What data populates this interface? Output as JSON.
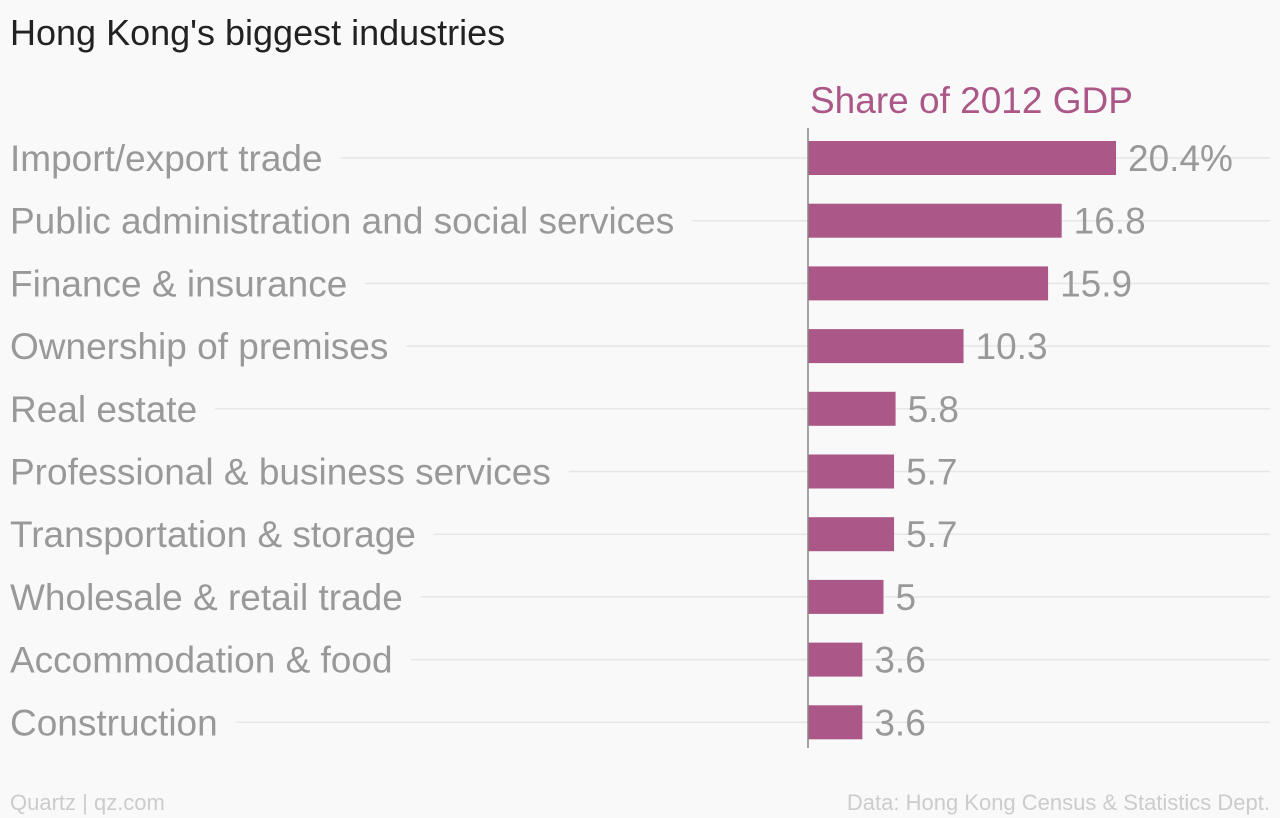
{
  "chart_data": {
    "type": "bar",
    "orientation": "horizontal",
    "title": "Hong Kong's biggest industries",
    "series": [
      {
        "name": "Share of 2012 GDP",
        "values": [
          20.4,
          16.8,
          15.9,
          10.3,
          5.8,
          5.7,
          5.7,
          5,
          3.6,
          3.6
        ]
      }
    ],
    "categories": [
      "Import/export trade",
      "Public administration and social services",
      "Finance & insurance",
      "Ownership of premises",
      "Real estate",
      "Professional & business services",
      "Transportation & storage",
      "Wholesale & retail trade",
      "Accommodation & food",
      "Construction"
    ],
    "value_labels": [
      "20.4%",
      "16.8",
      "15.9",
      "10.3",
      "5.8",
      "5.7",
      "5.7",
      "5",
      "3.6",
      "3.6"
    ],
    "xlim": [
      0,
      30
    ],
    "grid": true,
    "bar_color": "#ab5787",
    "series_title_color": "#ab5787"
  },
  "footer": {
    "credit": "Quartz | qz.com",
    "source": "Data: Hong Kong Census & Statistics Dept."
  }
}
